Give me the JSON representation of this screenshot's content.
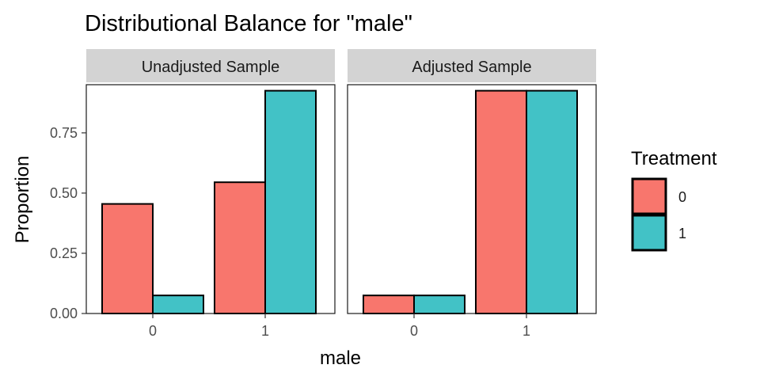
{
  "chart_data": {
    "type": "bar",
    "title": "Distributional Balance for \"male\"",
    "xlabel": "male",
    "ylabel": "Proportion",
    "categories": [
      "0",
      "1"
    ],
    "ylim": [
      0,
      0.95
    ],
    "yticks": [
      0,
      0.25,
      0.5,
      0.75
    ],
    "ytick_labels": [
      "0.00",
      "0.25",
      "0.50",
      "0.75"
    ],
    "grid": false,
    "legend": {
      "title": "Treatment",
      "position": "right",
      "entries": [
        {
          "label": "0",
          "color": "#F8766D"
        },
        {
          "label": "1",
          "color": "#42C2C6"
        }
      ]
    },
    "panels": [
      {
        "label": "Unadjusted Sample",
        "series": [
          {
            "name": "0",
            "values": [
              0.455,
              0.545
            ]
          },
          {
            "name": "1",
            "values": [
              0.075,
              0.925
            ]
          }
        ]
      },
      {
        "label": "Adjusted Sample",
        "series": [
          {
            "name": "0",
            "values": [
              0.075,
              0.925
            ]
          },
          {
            "name": "1",
            "values": [
              0.075,
              0.925
            ]
          }
        ]
      }
    ]
  }
}
